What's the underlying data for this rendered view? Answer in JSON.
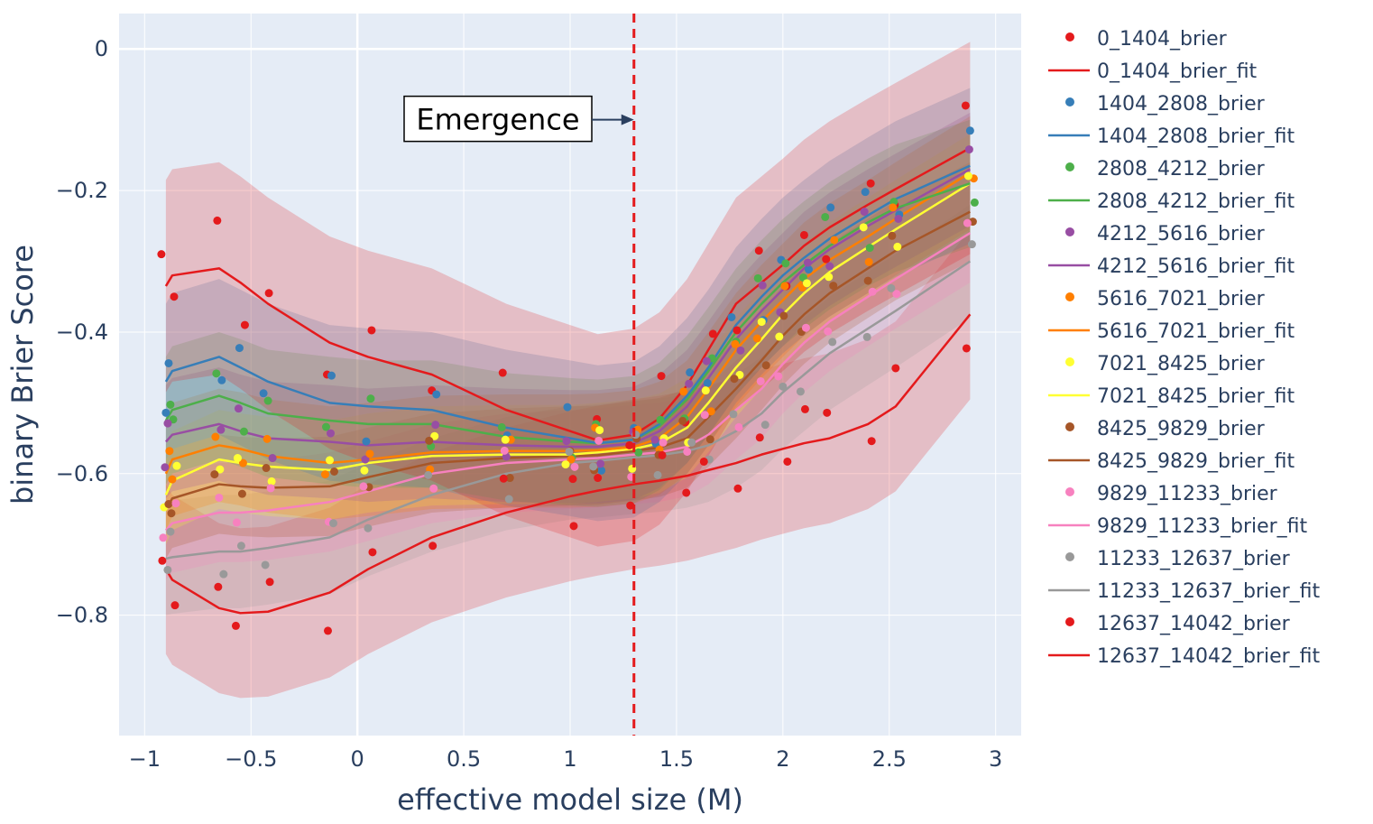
{
  "chart_data": {
    "type": "scatter",
    "xlabel": "effective model size (M)",
    "ylabel": "binary Brier Score",
    "xlim": [
      -1.12,
      3.12
    ],
    "ylim": [
      -0.97,
      0.05
    ],
    "xticks": [
      -1,
      -0.5,
      0,
      0.5,
      1,
      1.5,
      2,
      2.5,
      3
    ],
    "xtick_labels": [
      "−1",
      "−0.5",
      "0",
      "0.5",
      "1",
      "1.5",
      "2",
      "2.5",
      "3"
    ],
    "yticks": [
      0,
      -0.2,
      -0.4,
      -0.6,
      -0.8
    ],
    "ytick_labels": [
      "0",
      "−0.2",
      "−0.4",
      "−0.6",
      "−0.8"
    ],
    "emergence_x": 1.3,
    "annotation": {
      "text": "Emergence",
      "x": 1.3,
      "y": -0.1
    },
    "legend_position": "right",
    "fit_x": [
      -0.9,
      -0.87,
      -0.65,
      -0.55,
      -0.42,
      -0.13,
      0.05,
      0.35,
      0.7,
      1.0,
      1.13,
      1.3,
      1.42,
      1.55,
      1.65,
      1.78,
      1.9,
      2.0,
      2.1,
      2.22,
      2.4,
      2.53,
      2.88
    ],
    "series": [
      {
        "name": "0_1404_brier",
        "fit_name": "0_1404_brier_fit",
        "color": "#e41a1c",
        "fit": [
          -0.335,
          -0.32,
          -0.31,
          -0.33,
          -0.36,
          -0.415,
          -0.435,
          -0.46,
          -0.51,
          -0.54,
          -0.553,
          -0.545,
          -0.522,
          -0.475,
          -0.425,
          -0.36,
          -0.33,
          -0.305,
          -0.278,
          -0.252,
          -0.22,
          -0.198,
          -0.14
        ],
        "band": 0.15
      },
      {
        "name": "1404_2808_brier",
        "fit_name": "1404_2808_brier_fit",
        "color": "#377eb8",
        "fit": [
          -0.47,
          -0.455,
          -0.435,
          -0.45,
          -0.47,
          -0.5,
          -0.505,
          -0.51,
          -0.535,
          -0.55,
          -0.557,
          -0.552,
          -0.53,
          -0.49,
          -0.45,
          -0.39,
          -0.35,
          -0.32,
          -0.295,
          -0.268,
          -0.235,
          -0.212,
          -0.165
        ],
        "band": 0.11
      },
      {
        "name": "2808_4212_brier",
        "fit_name": "2808_4212_brier_fit",
        "color": "#4daf4a",
        "fit": [
          -0.525,
          -0.51,
          -0.49,
          -0.5,
          -0.515,
          -0.525,
          -0.53,
          -0.53,
          -0.548,
          -0.555,
          -0.557,
          -0.552,
          -0.533,
          -0.495,
          -0.455,
          -0.4,
          -0.36,
          -0.33,
          -0.305,
          -0.278,
          -0.245,
          -0.225,
          -0.19
        ],
        "band": 0.09
      },
      {
        "name": "4212_5616_brier",
        "fit_name": "4212_5616_brier_fit",
        "color": "#984ea3",
        "fit": [
          -0.555,
          -0.545,
          -0.53,
          -0.54,
          -0.55,
          -0.555,
          -0.56,
          -0.555,
          -0.56,
          -0.562,
          -0.562,
          -0.557,
          -0.54,
          -0.505,
          -0.465,
          -0.41,
          -0.37,
          -0.34,
          -0.31,
          -0.283,
          -0.25,
          -0.228,
          -0.17
        ],
        "band": 0.08
      },
      {
        "name": "5616_7021_brier",
        "fit_name": "5616_7021_brier_fit",
        "color": "#ff7f00",
        "fit": [
          -0.6,
          -0.58,
          -0.56,
          -0.565,
          -0.575,
          -0.585,
          -0.58,
          -0.57,
          -0.568,
          -0.568,
          -0.567,
          -0.562,
          -0.55,
          -0.52,
          -0.48,
          -0.425,
          -0.385,
          -0.355,
          -0.325,
          -0.298,
          -0.265,
          -0.24,
          -0.175
        ],
        "band": 0.08
      },
      {
        "name": "7021_8425_brier",
        "fit_name": "7021_8425_brier_fit",
        "color": "#ffff33",
        "fit": [
          -0.63,
          -0.61,
          -0.58,
          -0.585,
          -0.59,
          -0.595,
          -0.585,
          -0.575,
          -0.573,
          -0.573,
          -0.57,
          -0.565,
          -0.557,
          -0.535,
          -0.5,
          -0.45,
          -0.41,
          -0.375,
          -0.345,
          -0.315,
          -0.28,
          -0.255,
          -0.19
        ],
        "band": 0.07
      },
      {
        "name": "8425_9829_brier",
        "fit_name": "8425_9829_brier_fit",
        "color": "#a65628",
        "fit": [
          -0.65,
          -0.635,
          -0.615,
          -0.618,
          -0.62,
          -0.618,
          -0.605,
          -0.585,
          -0.578,
          -0.575,
          -0.574,
          -0.568,
          -0.563,
          -0.55,
          -0.52,
          -0.48,
          -0.44,
          -0.405,
          -0.375,
          -0.345,
          -0.31,
          -0.285,
          -0.23
        ],
        "band": 0.07
      },
      {
        "name": "9829_11233_brier",
        "fit_name": "9829_11233_brier_fit",
        "color": "#f781bf",
        "fit": [
          -0.68,
          -0.67,
          -0.655,
          -0.655,
          -0.652,
          -0.64,
          -0.625,
          -0.6,
          -0.585,
          -0.58,
          -0.578,
          -0.573,
          -0.57,
          -0.562,
          -0.545,
          -0.51,
          -0.48,
          -0.445,
          -0.415,
          -0.385,
          -0.35,
          -0.325,
          -0.26
        ],
        "band": 0.07
      },
      {
        "name": "11233_12637_brier",
        "fit_name": "11233_12637_brier_fit",
        "color": "#999999",
        "fit": [
          -0.72,
          -0.718,
          -0.71,
          -0.71,
          -0.705,
          -0.69,
          -0.665,
          -0.63,
          -0.6,
          -0.585,
          -0.582,
          -0.577,
          -0.574,
          -0.568,
          -0.56,
          -0.54,
          -0.515,
          -0.485,
          -0.46,
          -0.43,
          -0.395,
          -0.37,
          -0.3
        ],
        "band": 0.08
      },
      {
        "name": "12637_14042_brier",
        "fit_name": "12637_14042_brier_fit",
        "color": "#e41a1c",
        "fit": [
          -0.735,
          -0.75,
          -0.79,
          -0.797,
          -0.795,
          -0.768,
          -0.735,
          -0.69,
          -0.655,
          -0.632,
          -0.624,
          -0.615,
          -0.61,
          -0.603,
          -0.595,
          -0.585,
          -0.573,
          -0.565,
          -0.557,
          -0.55,
          -0.53,
          -0.505,
          -0.375
        ],
        "band": 0.12
      }
    ]
  }
}
